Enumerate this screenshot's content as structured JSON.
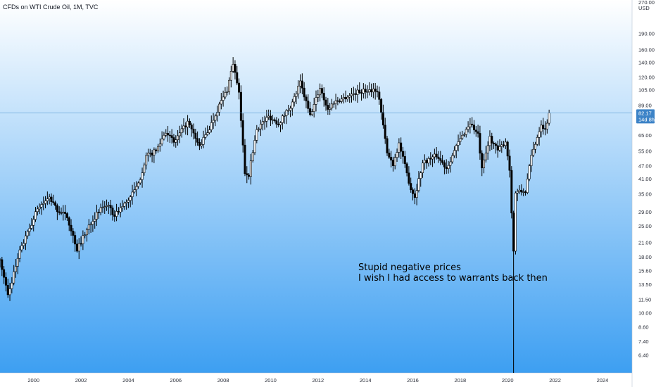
{
  "chart_data": {
    "type": "candlestick",
    "title": "CFDs on WTI Crude Oil, 1M, TVC",
    "y_scale": "log",
    "y_unit": "USD",
    "ylim": [
      5.3,
      270
    ],
    "xlim": [
      "1998-08",
      "2025-04"
    ],
    "y_ticks": [
      "270.00",
      "USD",
      "190.00",
      "160.00",
      "140.00",
      "120.00",
      "105.00",
      "89.00",
      "65.00",
      "55.00",
      "47.00",
      "41.00",
      "35.00",
      "29.00",
      "25.00",
      "21.00",
      "18.00",
      "15.60",
      "13.50",
      "11.50",
      "10.00",
      "8.60",
      "7.40",
      "6.40"
    ],
    "x_ticks": [
      "2000",
      "2002",
      "2004",
      "2006",
      "2008",
      "2010",
      "2012",
      "2014",
      "2016",
      "2018",
      "2020",
      "2022",
      "2024"
    ],
    "current_price": "82.17",
    "countdown": "14d 8h",
    "annotation_lines": [
      "Stupid negative prices",
      "I wish I had access to warrants back then"
    ],
    "colors": {
      "gradient_top": "#ffffff",
      "gradient_bottom": "#3d9ff2",
      "candle": "#000000",
      "price_line": "#5b9bd5",
      "price_label": "#3c83c7"
    },
    "anchors": [
      [
        "1998-08",
        17.5
      ],
      [
        "1998-12",
        12.0
      ],
      [
        "1999-06",
        19.0
      ],
      [
        "1999-12",
        25.5
      ],
      [
        "2000-03",
        30.0
      ],
      [
        "2000-09",
        33.5
      ],
      [
        "2001-01",
        29.5
      ],
      [
        "2001-06",
        27.5
      ],
      [
        "2001-11",
        19.5
      ],
      [
        "2002-06",
        26.0
      ],
      [
        "2002-12",
        30.5
      ],
      [
        "2003-03",
        31.5
      ],
      [
        "2003-05",
        27.5
      ],
      [
        "2003-12",
        32.0
      ],
      [
        "2004-06",
        38.5
      ],
      [
        "2004-10",
        52.0
      ],
      [
        "2005-03",
        55.0
      ],
      [
        "2005-08",
        68.0
      ],
      [
        "2005-12",
        60.0
      ],
      [
        "2006-07",
        74.5
      ],
      [
        "2007-01",
        57.5
      ],
      [
        "2007-06",
        70.0
      ],
      [
        "2007-11",
        89.0
      ],
      [
        "2008-03",
        105.0
      ],
      [
        "2008-06",
        139.0
      ],
      [
        "2008-09",
        100.0
      ],
      [
        "2008-12",
        44.0
      ],
      [
        "2009-02",
        43.0
      ],
      [
        "2009-06",
        69.5
      ],
      [
        "2009-12",
        79.0
      ],
      [
        "2010-05",
        73.5
      ],
      [
        "2010-12",
        91.0
      ],
      [
        "2011-04",
        113.0
      ],
      [
        "2011-09",
        79.5
      ],
      [
        "2012-02",
        107.0
      ],
      [
        "2012-06",
        85.0
      ],
      [
        "2012-09",
        92.0
      ],
      [
        "2013-03",
        97.0
      ],
      [
        "2013-09",
        102.5
      ],
      [
        "2014-06",
        105.5
      ],
      [
        "2014-08",
        96.0
      ],
      [
        "2014-12",
        53.5
      ],
      [
        "2015-03",
        48.0
      ],
      [
        "2015-06",
        59.5
      ],
      [
        "2015-12",
        37.0
      ],
      [
        "2016-02",
        34.0
      ],
      [
        "2016-06",
        48.5
      ],
      [
        "2017-01",
        52.5
      ],
      [
        "2017-06",
        46.0
      ],
      [
        "2017-12",
        60.0
      ],
      [
        "2018-06",
        74.0
      ],
      [
        "2018-10",
        65.0
      ],
      [
        "2018-12",
        45.0
      ],
      [
        "2019-04",
        63.5
      ],
      [
        "2019-08",
        55.0
      ],
      [
        "2019-12",
        61.0
      ],
      [
        "2020-02",
        45.0
      ],
      [
        "2020-04",
        19.0
      ],
      [
        "2020-05",
        35.5
      ],
      [
        "2020-10",
        36.0
      ],
      [
        "2021-01",
        52.0
      ],
      [
        "2021-06",
        73.5
      ],
      [
        "2021-08",
        68.5
      ],
      [
        "2021-10",
        82.17
      ]
    ]
  }
}
